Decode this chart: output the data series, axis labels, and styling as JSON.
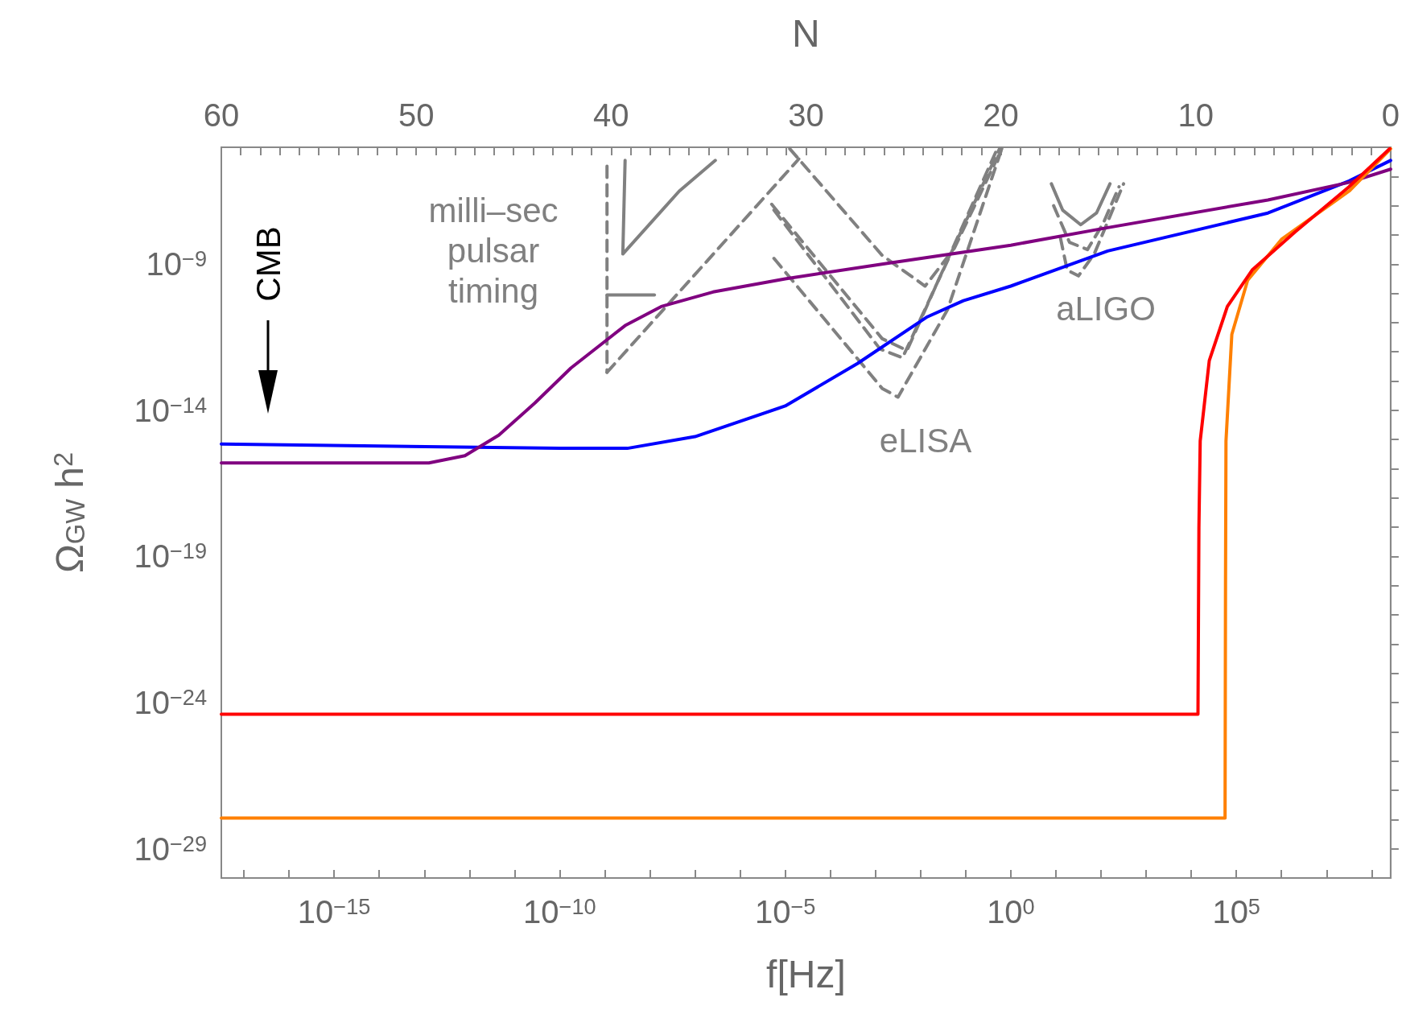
{
  "chart_data": {
    "type": "line",
    "xlabel": "f[Hz]",
    "ylabel": "Ω$_{GW}$ h$^{2}$",
    "x2label": "N",
    "log": "xy",
    "marker": "none",
    "line_style": "solid",
    "xlim": [
      3.16e-18,
      263000000.0
    ],
    "xticks": [
      {
        "value": 1e-17,
        "label": null
      },
      {
        "value": 1e-16,
        "label": null
      },
      {
        "value": 1e-15,
        "label": "10$^{−15}$"
      },
      {
        "value": 1e-14,
        "label": null
      },
      {
        "value": 1e-13,
        "label": null
      },
      {
        "value": 1e-12,
        "label": null
      },
      {
        "value": 1e-11,
        "label": null
      },
      {
        "value": 1e-10,
        "label": "10$^{−10}$"
      },
      {
        "value": 1e-09,
        "label": null
      },
      {
        "value": 1e-08,
        "label": null
      },
      {
        "value": 1e-07,
        "label": null
      },
      {
        "value": 1e-06,
        "label": null
      },
      {
        "value": 1e-05,
        "label": "10$^{−5}$"
      },
      {
        "value": 0.0001,
        "label": null
      },
      {
        "value": 0.001,
        "label": null
      },
      {
        "value": 0.01,
        "label": null
      },
      {
        "value": 0.1,
        "label": null
      },
      {
        "value": 1,
        "label": "10$^{0}$"
      },
      {
        "value": 10,
        "label": null
      },
      {
        "value": 100,
        "label": null
      },
      {
        "value": 1000,
        "label": null
      },
      {
        "value": 10000,
        "label": null
      },
      {
        "value": 100000,
        "label": "10$^{5}$"
      },
      {
        "value": 1000000.0,
        "label": null
      },
      {
        "value": 10000000.0,
        "label": null
      },
      {
        "value": 100000000.0,
        "label": null
      }
    ],
    "ylim": [
      1e-30,
      1e-05
    ],
    "yticks": [
      {
        "value": 1e-29,
        "label": "10$^{−29}$"
      },
      {
        "value": 1e-28,
        "label": null
      },
      {
        "value": 1e-27,
        "label": null
      },
      {
        "value": 1e-26,
        "label": null
      },
      {
        "value": 1e-25,
        "label": null
      },
      {
        "value": 1e-24,
        "label": "10$^{−24}$"
      },
      {
        "value": 1e-23,
        "label": null
      },
      {
        "value": 1e-22,
        "label": null
      },
      {
        "value": 1e-21,
        "label": null
      },
      {
        "value": 1e-20,
        "label": null
      },
      {
        "value": 1e-19,
        "label": "10$^{−19}$"
      },
      {
        "value": 1e-18,
        "label": null
      },
      {
        "value": 1e-17,
        "label": null
      },
      {
        "value": 1e-16,
        "label": null
      },
      {
        "value": 1e-15,
        "label": null
      },
      {
        "value": 1e-14,
        "label": "10$^{−14}$"
      },
      {
        "value": 1e-13,
        "label": null
      },
      {
        "value": 1e-12,
        "label": null
      },
      {
        "value": 1e-11,
        "label": null
      },
      {
        "value": 1e-10,
        "label": null
      },
      {
        "value": 1e-09,
        "label": "10$^{−9}$"
      },
      {
        "value": 1e-08,
        "label": null
      },
      {
        "value": 1e-07,
        "label": null
      },
      {
        "value": 1e-06,
        "label": null
      }
    ],
    "x2lim": [
      60,
      0
    ],
    "x2ticks": [
      60,
      {
        "value": 59,
        "label": null
      },
      {
        "value": 58,
        "label": null
      },
      {
        "value": 57,
        "label": null
      },
      {
        "value": 56,
        "label": null
      },
      {
        "value": 55,
        "label": null
      },
      {
        "value": 54,
        "label": null
      },
      {
        "value": 53,
        "label": null
      },
      {
        "value": 52,
        "label": null
      },
      {
        "value": 51,
        "label": null
      },
      50,
      {
        "value": 49,
        "label": null
      },
      {
        "value": 48,
        "label": null
      },
      {
        "value": 47,
        "label": null
      },
      {
        "value": 46,
        "label": null
      },
      {
        "value": 45,
        "label": null
      },
      {
        "value": 44,
        "label": null
      },
      {
        "value": 43,
        "label": null
      },
      {
        "value": 42,
        "label": null
      },
      {
        "value": 41,
        "label": null
      },
      40,
      {
        "value": 39,
        "label": null
      },
      {
        "value": 38,
        "label": null
      },
      {
        "value": 37,
        "label": null
      },
      {
        "value": 36,
        "label": null
      },
      {
        "value": 35,
        "label": null
      },
      {
        "value": 34,
        "label": null
      },
      {
        "value": 33,
        "label": null
      },
      {
        "value": 32,
        "label": null
      },
      {
        "value": 31,
        "label": null
      },
      30,
      {
        "value": 29,
        "label": null
      },
      {
        "value": 28,
        "label": null
      },
      {
        "value": 27,
        "label": null
      },
      {
        "value": 26,
        "label": null
      },
      {
        "value": 25,
        "label": null
      },
      {
        "value": 24,
        "label": null
      },
      {
        "value": 23,
        "label": null
      },
      {
        "value": 22,
        "label": null
      },
      {
        "value": 21,
        "label": null
      },
      20,
      {
        "value": 19,
        "label": null
      },
      {
        "value": 18,
        "label": null
      },
      {
        "value": 17,
        "label": null
      },
      {
        "value": 16,
        "label": null
      },
      {
        "value": 15,
        "label": null
      },
      {
        "value": 14,
        "label": null
      },
      {
        "value": 13,
        "label": null
      },
      {
        "value": 12,
        "label": null
      },
      {
        "value": 11,
        "label": null
      },
      10,
      {
        "value": 9,
        "label": null
      },
      {
        "value": 8,
        "label": null
      },
      {
        "value": 7,
        "label": null
      },
      {
        "value": 6,
        "label": null
      },
      {
        "value": 5,
        "label": null
      },
      {
        "value": 4,
        "label": null
      },
      {
        "value": 3,
        "label": null
      },
      {
        "value": 2,
        "label": null
      },
      {
        "value": 1,
        "label": null
      },
      0
    ],
    "series": [
      {
        "color": "#808080",
        "line_style": "dashed",
        "x": [
          1.12e-09,
          1.12e-09
        ],
        "values": [
          2.24e-06,
          2e-13
        ]
      },
      {
        "color": "#808080",
        "line_style": "dashed",
        "x": [
          1.12e-09,
          2e-05
        ],
        "values": [
          2e-13,
          3.98e-06
        ]
      },
      {
        "color": "#808080",
        "x": [
          2.82e-09,
          2.51e-09,
          4.47e-08,
          2.82e-07
        ],
        "values": [
          3.55e-06,
          2.24e-09,
          3.16e-07,
          3.55e-06
        ]
      },
      {
        "color": "#808080",
        "x": [
          1.12e-09,
          1.26e-08
        ],
        "values": [
          8.91e-11,
          8.91e-11
        ]
      },
      {
        "color": "#808080",
        "line_style": "dashed",
        "x": [
          1.26e-05,
          0.00141,
          0.0126,
          0.0562,
          0.631
        ],
        "values": [
          8.91e-06,
          2e-09,
          1.78e-10,
          3.55e-09,
          8.91e-06
        ]
      },
      {
        "color": "#808080",
        "line_style": "dashed",
        "x": [
          5.01e-06,
          0.00141,
          0.00501,
          0.501
        ],
        "values": [
          1.12e-07,
          2.82e-12,
          1.12e-12,
          8.91e-06
        ]
      },
      {
        "color": "#808080",
        "line_style": "dashed",
        "x": [
          5.62e-06,
          0.00126,
          0.00398,
          0.562
        ],
        "values": [
          7.08e-08,
          1.26e-12,
          6.31e-13,
          8.91e-06
        ]
      },
      {
        "color": "#808080",
        "line_style": "dashed",
        "x": [
          5.62e-06,
          0.00141,
          0.00316,
          0.0398,
          0.631
        ],
        "values": [
          1.58e-09,
          5.62e-14,
          2.82e-14,
          2.82e-11,
          8.91e-06
        ]
      },
      {
        "color": "#808080",
        "x": [
          7.94,
          14.1,
          35.5,
          79.4,
          158
        ],
        "values": [
          5.62e-07,
          7.08e-08,
          2.24e-08,
          5.62e-08,
          5.62e-07
        ]
      },
      {
        "color": "#808080",
        "line_style": "dashed",
        "x": [
          8.91,
          20,
          50.1,
          112,
          251
        ],
        "values": [
          1e-07,
          5.62e-09,
          3.16e-09,
          2.51e-08,
          4.47e-07
        ]
      },
      {
        "color": "#808080",
        "line_style": "dashed",
        "x": [
          12.6,
          17.8,
          31.6,
          70.8,
          316
        ],
        "values": [
          7.94e-09,
          6.31e-10,
          3.98e-10,
          2.24e-09,
          5.62e-07
        ]
      },
      {
        "color": "#0000ff",
        "x": [
          3.16e-18,
          1e-10,
          3.16e-09,
          1e-07,
          1e-05,
          0.000398,
          0.0141,
          0.0891,
          1,
          141,
          501000.0,
          31600000.0,
          263000000.0
        ],
        "values": [
          7.08e-16,
          5.01e-16,
          5.01e-16,
          1.26e-15,
          1.41e-14,
          3.98e-13,
          1.58e-11,
          5.62e-11,
          1.78e-10,
          2.82e-09,
          5.62e-08,
          7.08e-07,
          3.55e-06
        ]
      },
      {
        "color": "#800080",
        "x": [
          3.16e-18,
          1.26e-13,
          7.94e-13,
          4.47e-12,
          2.82e-11,
          1.78e-10,
          2.82e-09,
          1.78e-08,
          2.51e-07,
          1e-05,
          0.00224,
          1,
          141,
          501000.0,
          31600000.0,
          263000000.0
        ],
        "values": [
          1.58e-16,
          1.58e-16,
          2.82e-16,
          1.41e-15,
          1.78e-14,
          2.82e-13,
          7.94e-12,
          3.55e-11,
          1.12e-10,
          3.16e-10,
          1.12e-09,
          4.47e-09,
          1.78e-08,
          1.58e-07,
          6.31e-07,
          1.78e-06
        ]
      },
      {
        "color": "#ff8000",
        "x": [
          3.16e-18,
          56200.0,
          57500.0,
          58900.0,
          79400.0,
          178000.0,
          1000000.0,
          31600000.0,
          263000000.0
        ],
        "values": [
          1.12e-28,
          1.12e-28,
          1e-20,
          8.91e-16,
          3.98e-12,
          2.82e-10,
          7.08e-09,
          3.16e-07,
          8.91e-06
        ]
      },
      {
        "color": "#ff0000",
        "x": [
          3.16e-18,
          14100.0,
          14800.0,
          15800.0,
          25100.0,
          63100.0,
          224000.0,
          2000000.0,
          31600000.0,
          251000000.0
        ],
        "values": [
          3.98e-25,
          3.98e-25,
          1e-18,
          8.91e-16,
          5.01e-13,
          3.55e-11,
          6.31e-10,
          1.26e-08,
          4.47e-07,
          8.91e-06
        ]
      }
    ],
    "annotations": [
      "milli–sec\npulsar\ntiming",
      "CMB",
      "eLISA",
      "aLIGO"
    ]
  }
}
